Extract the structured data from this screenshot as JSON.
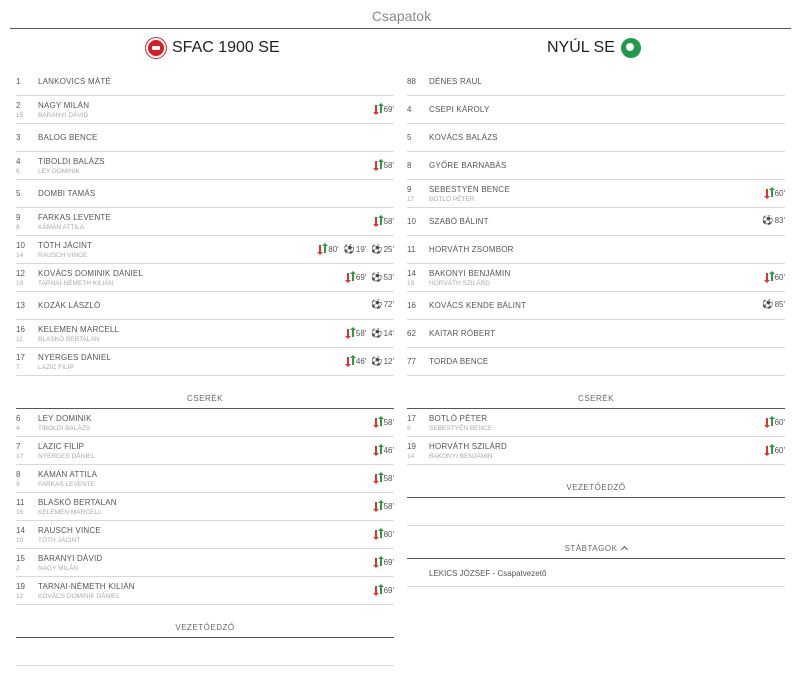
{
  "page_title": "Csapatok",
  "home": {
    "name": "SFAC 1900 SE",
    "logo_icon": "sfac-crest-icon",
    "starters": [
      {
        "num": "1",
        "name": "LANKOVICS MÁTÉ",
        "sub_num": "",
        "sub_name": "",
        "events": []
      },
      {
        "num": "2",
        "name": "NAGY MILÁN",
        "sub_num": "15",
        "sub_name": "BARANYI DÁVID",
        "events": [
          {
            "type": "sub",
            "min": "69'"
          }
        ]
      },
      {
        "num": "3",
        "name": "BALOG BENCE",
        "sub_num": "",
        "sub_name": "",
        "events": []
      },
      {
        "num": "4",
        "name": "TIBOLDI BALÁZS",
        "sub_num": "6",
        "sub_name": "LEY DOMINIK",
        "events": [
          {
            "type": "sub",
            "min": "58'"
          }
        ]
      },
      {
        "num": "5",
        "name": "DOMBI TAMÁS",
        "sub_num": "",
        "sub_name": "",
        "events": []
      },
      {
        "num": "9",
        "name": "FARKAS LEVENTE",
        "sub_num": "8",
        "sub_name": "KÁMÁN ATTILA",
        "events": [
          {
            "type": "sub",
            "min": "58'"
          }
        ]
      },
      {
        "num": "10",
        "name": "TÓTH JÁCINT",
        "sub_num": "14",
        "sub_name": "RAUSCH VINCE",
        "events": [
          {
            "type": "sub",
            "min": "80'"
          },
          {
            "type": "goal",
            "min": "19'"
          },
          {
            "type": "goal",
            "min": "25'"
          }
        ]
      },
      {
        "num": "12",
        "name": "KOVÁCS DOMINIK DÁNIEL",
        "sub_num": "19",
        "sub_name": "TARNAI-NÉMETH KILIÁN",
        "events": [
          {
            "type": "sub",
            "min": "69'"
          },
          {
            "type": "goal",
            "min": "53'"
          }
        ]
      },
      {
        "num": "13",
        "name": "KOZÁK LÁSZLÓ",
        "sub_num": "",
        "sub_name": "",
        "events": [
          {
            "type": "goal",
            "min": "72'"
          }
        ]
      },
      {
        "num": "16",
        "name": "KELEMEN MARCELL",
        "sub_num": "11",
        "sub_name": "BLASKÓ BERTALAN",
        "events": [
          {
            "type": "sub",
            "min": "58'"
          },
          {
            "type": "goal",
            "min": "14'"
          }
        ]
      },
      {
        "num": "17",
        "name": "NYERGES DÁNIEL",
        "sub_num": "7",
        "sub_name": "LAZIC FILIP",
        "events": [
          {
            "type": "sub",
            "min": "46'"
          },
          {
            "type": "goal",
            "min": "12'"
          }
        ]
      }
    ],
    "subs_label": "CSERÉK",
    "subs": [
      {
        "num": "6",
        "name": "LEY DOMINIK",
        "sub_num": "4",
        "sub_name": "TIBOLDI BALÁZS",
        "events": [
          {
            "type": "sub",
            "min": "58'"
          }
        ]
      },
      {
        "num": "7",
        "name": "LAZIC FILIP",
        "sub_num": "17",
        "sub_name": "NYERGES DÁNIEL",
        "events": [
          {
            "type": "sub",
            "min": "46'"
          }
        ]
      },
      {
        "num": "8",
        "name": "KÁMÁN ATTILA",
        "sub_num": "9",
        "sub_name": "FARKAS LEVENTE",
        "events": [
          {
            "type": "sub",
            "min": "58'"
          }
        ]
      },
      {
        "num": "11",
        "name": "BLASKÓ BERTALAN",
        "sub_num": "16",
        "sub_name": "KELEMEN MARCELL",
        "events": [
          {
            "type": "sub",
            "min": "58'"
          }
        ]
      },
      {
        "num": "14",
        "name": "RAUSCH VINCE",
        "sub_num": "10",
        "sub_name": "TÓTH JÁCINT",
        "events": [
          {
            "type": "sub",
            "min": "80'"
          }
        ]
      },
      {
        "num": "15",
        "name": "BARANYI DÁVID",
        "sub_num": "2",
        "sub_name": "NAGY MILÁN",
        "events": [
          {
            "type": "sub",
            "min": "69'"
          }
        ]
      },
      {
        "num": "19",
        "name": "TARNAI-NÉMETH KILIÁN",
        "sub_num": "12",
        "sub_name": "KOVÁCS DOMINIK DÁNIEL",
        "events": [
          {
            "type": "sub",
            "min": "69'"
          }
        ]
      }
    ],
    "coach_label": "VEZETŐEDZŐ"
  },
  "away": {
    "name": "NYÚL SE",
    "logo_icon": "nyul-crest-icon",
    "starters": [
      {
        "num": "88",
        "name": "DÉNES RAUL",
        "sub_num": "",
        "sub_name": "",
        "events": []
      },
      {
        "num": "4",
        "name": "CSEPI KÁROLY",
        "sub_num": "",
        "sub_name": "",
        "events": []
      },
      {
        "num": "5",
        "name": "KOVÁCS BALÁZS",
        "sub_num": "",
        "sub_name": "",
        "events": []
      },
      {
        "num": "8",
        "name": "GYŐRE BARNABÁS",
        "sub_num": "",
        "sub_name": "",
        "events": []
      },
      {
        "num": "9",
        "name": "SEBESTYÉN BENCE",
        "sub_num": "17",
        "sub_name": "BOTLÓ PÉTER",
        "events": [
          {
            "type": "sub",
            "min": "60'"
          }
        ]
      },
      {
        "num": "10",
        "name": "SZABÓ BÁLINT",
        "sub_num": "",
        "sub_name": "",
        "events": [
          {
            "type": "goal",
            "min": "83'"
          }
        ]
      },
      {
        "num": "11",
        "name": "HORVÁTH ZSOMBOR",
        "sub_num": "",
        "sub_name": "",
        "events": []
      },
      {
        "num": "14",
        "name": "BAKONYI BENJÁMIN",
        "sub_num": "19",
        "sub_name": "HORVÁTH SZILÁRD",
        "events": [
          {
            "type": "sub",
            "min": "60'"
          }
        ]
      },
      {
        "num": "16",
        "name": "KOVÁCS KENDE BÁLINT",
        "sub_num": "",
        "sub_name": "",
        "events": [
          {
            "type": "goal",
            "min": "85'"
          }
        ]
      },
      {
        "num": "62",
        "name": "KAITAR RÓBERT",
        "sub_num": "",
        "sub_name": "",
        "events": []
      },
      {
        "num": "77",
        "name": "TORDA BENCE",
        "sub_num": "",
        "sub_name": "",
        "events": []
      }
    ],
    "subs_label": "CSERÉK",
    "subs": [
      {
        "num": "17",
        "name": "BOTLÓ PÉTER",
        "sub_num": "9",
        "sub_name": "SEBESTYÉN BENCE",
        "events": [
          {
            "type": "sub",
            "min": "60'"
          }
        ]
      },
      {
        "num": "19",
        "name": "HORVÁTH SZILÁRD",
        "sub_num": "14",
        "sub_name": "BAKONYI BENJÁMIN",
        "events": [
          {
            "type": "sub",
            "min": "60'"
          }
        ]
      }
    ],
    "coach_label": "VEZETŐEDZŐ",
    "staff_label": "STÁBTAGOK",
    "staff": [
      {
        "text": "LEKICS JÓZSEF - Csapatvezető"
      }
    ]
  },
  "icons": {
    "substitution": "substitution-arrows-icon",
    "goal": "football-ball-icon",
    "collapse": "chevron-up-icon"
  }
}
